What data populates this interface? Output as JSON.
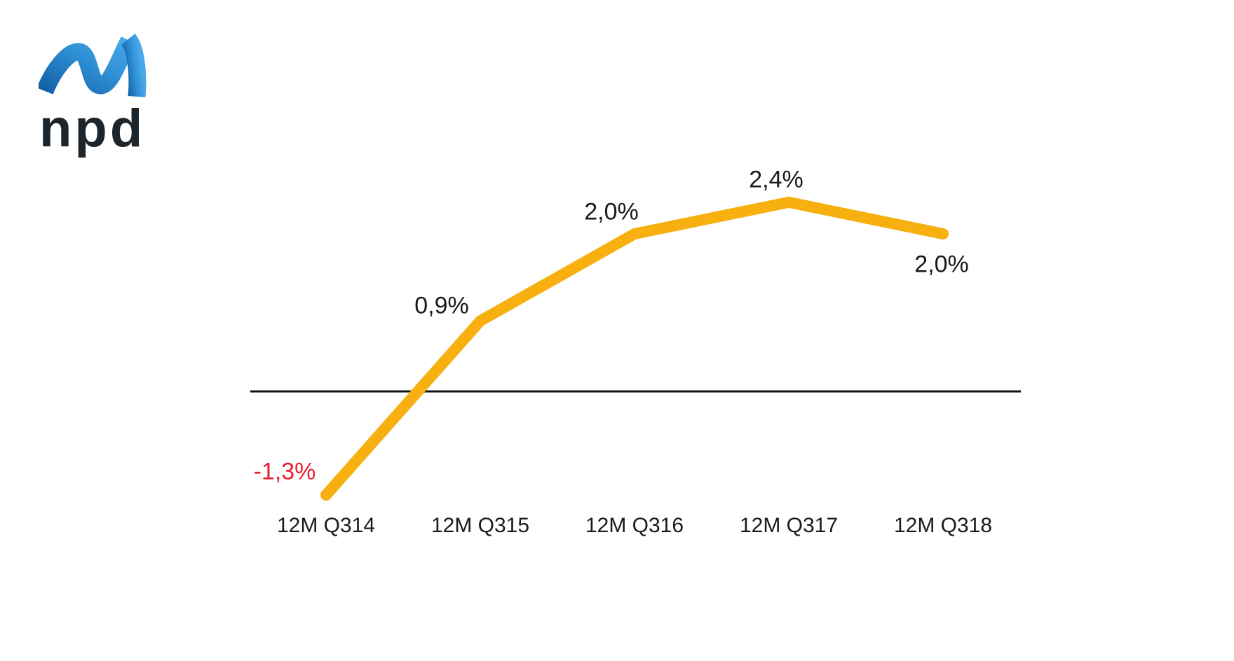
{
  "logo": {
    "text": "npd"
  },
  "colors": {
    "background": "#FFFFFF",
    "text": "#1A1A1A",
    "axis": "#111111",
    "line": "#F7B00F",
    "negative": "#E8202C",
    "logo_text": "#1C242C",
    "logo_blue_dark": "#1360A5",
    "logo_blue_mid": "#2E8FD4",
    "logo_blue_light": "#47A9E8"
  },
  "chart_data": {
    "type": "line",
    "categories": [
      "12M Q314",
      "12M Q315",
      "12M Q316",
      "12M Q317",
      "12M Q318"
    ],
    "values": [
      -1.3,
      0.9,
      2.0,
      2.4,
      2.0
    ],
    "point_labels": [
      "-1,3%",
      "0,9%",
      "2,0%",
      "2,4%",
      "2,0%"
    ],
    "unit": "%",
    "baseline": 0,
    "grid": false,
    "legend": false,
    "line_color": "#F7B00F",
    "negative_label_color": "#E8202C",
    "ylim": [
      -1.7,
      2.9
    ]
  }
}
